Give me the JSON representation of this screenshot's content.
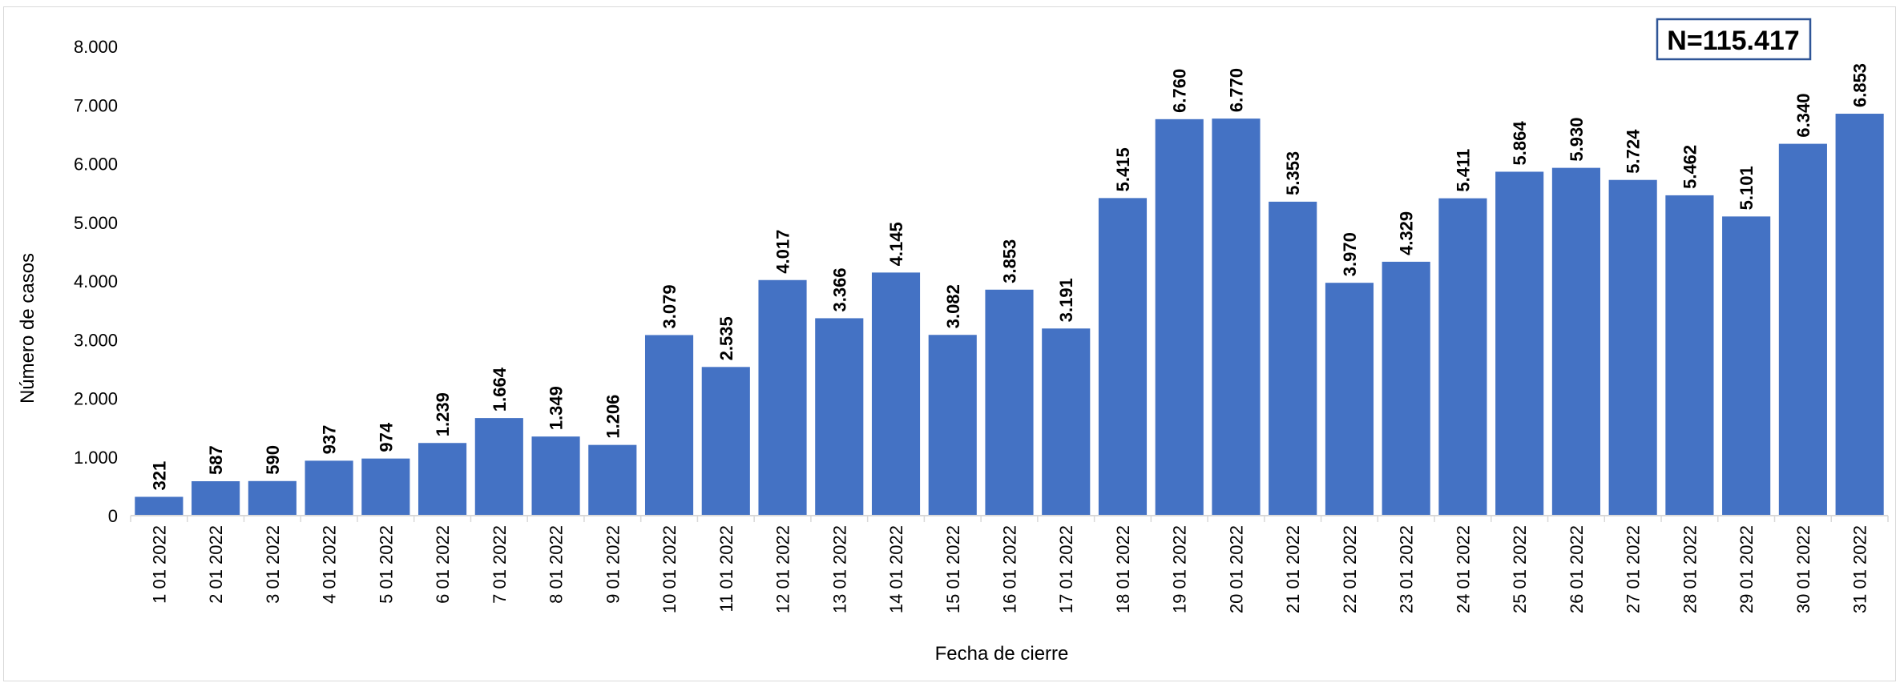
{
  "chart_data": {
    "type": "bar",
    "title": "",
    "annotation": "N=115.417",
    "xlabel": "Fecha de cierre",
    "ylabel": "Número de casos",
    "ylim": [
      0,
      8000
    ],
    "yticks": [
      "0",
      "1.000",
      "2.000",
      "3.000",
      "4.000",
      "5.000",
      "6.000",
      "7.000",
      "8.000"
    ],
    "grid": false,
    "bar_color": "#4472C4",
    "categories": [
      "1 01 2022",
      "2 01 2022",
      "3 01 2022",
      "4 01 2022",
      "5 01 2022",
      "6 01 2022",
      "7 01 2022",
      "8 01 2022",
      "9 01 2022",
      "10 01 2022",
      "11 01 2022",
      "12 01 2022",
      "13 01 2022",
      "14 01 2022",
      "15 01 2022",
      "16 01 2022",
      "17 01 2022",
      "18 01 2022",
      "19 01 2022",
      "20 01 2022",
      "21 01 2022",
      "22 01 2022",
      "23 01 2022",
      "24 01 2022",
      "25 01 2022",
      "26 01 2022",
      "27 01 2022",
      "28 01 2022",
      "29 01 2022",
      "30 01 2022",
      "31 01 2022"
    ],
    "values": [
      321,
      587,
      590,
      937,
      974,
      1239,
      1664,
      1349,
      1206,
      3079,
      2535,
      4017,
      3366,
      4145,
      3082,
      3853,
      3191,
      5415,
      6760,
      6770,
      5353,
      3970,
      4329,
      5411,
      5864,
      5930,
      5724,
      5462,
      5101,
      6340,
      6853
    ],
    "value_labels": [
      "321",
      "587",
      "590",
      "937",
      "974",
      "1.239",
      "1.664",
      "1.349",
      "1.206",
      "3.079",
      "2.535",
      "4.017",
      "3.366",
      "4.145",
      "3.082",
      "3.853",
      "3.191",
      "5.415",
      "6.760",
      "6.770",
      "5.353",
      "3.970",
      "4.329",
      "5.411",
      "5.864",
      "5.930",
      "5.724",
      "5.462",
      "5.101",
      "6.340",
      "6.853"
    ]
  }
}
